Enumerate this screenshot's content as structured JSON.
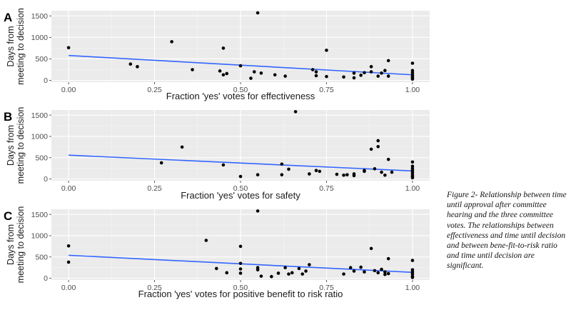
{
  "caption": "Figure 2- Relationship between time until approval after committee hearing and the three committee votes. The relationships between effectiveness and time until decision and between bene-fit-to-risk ratio and time until decision are significant.",
  "colors": {
    "panel_bg": "#ebebeb",
    "grid_major": "#ffffff",
    "grid_minor": "#f5f5f5",
    "points": "#000000",
    "fit_line": "#3366ff",
    "tick_text": "#4d4d4d"
  },
  "chart_data": [
    {
      "type": "scatter",
      "panel": "A",
      "title": "",
      "xlabel": "Fraction 'yes' votes for effectiveness",
      "ylabel": [
        "Days from",
        "meeting to decision"
      ],
      "xlim": [
        -0.05,
        1.05
      ],
      "ylim": [
        -40,
        1620
      ],
      "x_ticks": [
        "0.00",
        "0.25",
        "0.50",
        "0.75",
        "1.00"
      ],
      "x_tick_values": [
        0,
        0.25,
        0.5,
        0.75,
        1
      ],
      "y_ticks": [
        "0",
        "500",
        "1000",
        "1500"
      ],
      "y_tick_values": [
        0,
        500,
        1000,
        1500
      ],
      "grid": true,
      "points": [
        [
          0,
          760
        ],
        [
          0.18,
          380
        ],
        [
          0.2,
          320
        ],
        [
          0.3,
          900
        ],
        [
          0.36,
          250
        ],
        [
          0.44,
          220
        ],
        [
          0.45,
          130
        ],
        [
          0.45,
          750
        ],
        [
          0.46,
          160
        ],
        [
          0.5,
          340
        ],
        [
          0.53,
          50
        ],
        [
          0.54,
          200
        ],
        [
          0.55,
          1570
        ],
        [
          0.56,
          170
        ],
        [
          0.6,
          130
        ],
        [
          0.63,
          100
        ],
        [
          0.71,
          250
        ],
        [
          0.72,
          110
        ],
        [
          0.72,
          200
        ],
        [
          0.75,
          700
        ],
        [
          0.75,
          90
        ],
        [
          0.8,
          80
        ],
        [
          0.83,
          60
        ],
        [
          0.83,
          170
        ],
        [
          0.85,
          120
        ],
        [
          0.86,
          180
        ],
        [
          0.88,
          320
        ],
        [
          0.88,
          200
        ],
        [
          0.9,
          100
        ],
        [
          0.91,
          170
        ],
        [
          0.92,
          230
        ],
        [
          0.93,
          100
        ],
        [
          0.93,
          460
        ],
        [
          1,
          400
        ],
        [
          1,
          230
        ],
        [
          1,
          180
        ],
        [
          1,
          130
        ],
        [
          1,
          90
        ],
        [
          1,
          60
        ],
        [
          1,
          30
        ]
      ],
      "fit_line": [
        [
          0,
          580
        ],
        [
          1,
          130
        ]
      ]
    },
    {
      "type": "scatter",
      "panel": "B",
      "title": "",
      "xlabel": "Fraction 'yes' votes for safety",
      "ylabel": [
        "Days from",
        "meeting to decision"
      ],
      "xlim": [
        -0.05,
        1.05
      ],
      "ylim": [
        -40,
        1620
      ],
      "x_ticks": [
        "0.00",
        "0.25",
        "0.50",
        "0.75",
        "1.00"
      ],
      "x_tick_values": [
        0,
        0.25,
        0.5,
        0.75,
        1
      ],
      "y_ticks": [
        "0",
        "500",
        "1000",
        "1500"
      ],
      "y_tick_values": [
        0,
        500,
        1000,
        1500
      ],
      "grid": true,
      "points": [
        [
          0.27,
          380
        ],
        [
          0.33,
          750
        ],
        [
          0.45,
          330
        ],
        [
          0.5,
          60
        ],
        [
          0.55,
          100
        ],
        [
          0.62,
          350
        ],
        [
          0.62,
          100
        ],
        [
          0.64,
          230
        ],
        [
          0.66,
          1580
        ],
        [
          0.7,
          120
        ],
        [
          0.72,
          200
        ],
        [
          0.73,
          180
        ],
        [
          0.78,
          110
        ],
        [
          0.8,
          90
        ],
        [
          0.81,
          100
        ],
        [
          0.83,
          120
        ],
        [
          0.83,
          80
        ],
        [
          0.86,
          200
        ],
        [
          0.86,
          180
        ],
        [
          0.88,
          700
        ],
        [
          0.89,
          240
        ],
        [
          0.9,
          900
        ],
        [
          0.9,
          760
        ],
        [
          0.91,
          160
        ],
        [
          0.92,
          90
        ],
        [
          0.93,
          460
        ],
        [
          0.94,
          160
        ],
        [
          1,
          400
        ],
        [
          1,
          300
        ],
        [
          1,
          250
        ],
        [
          1,
          200
        ],
        [
          1,
          150
        ],
        [
          1,
          100
        ],
        [
          1,
          60
        ],
        [
          1,
          30
        ]
      ],
      "fit_line": [
        [
          0,
          560
        ],
        [
          1,
          190
        ]
      ]
    },
    {
      "type": "scatter",
      "panel": "C",
      "title": "",
      "xlabel": "Fraction 'yes' votes for positive benefit to risk ratio",
      "ylabel": [
        "Days from",
        "meeting to decision"
      ],
      "xlim": [
        -0.05,
        1.05
      ],
      "ylim": [
        -40,
        1620
      ],
      "x_ticks": [
        "0.00",
        "0.25",
        "0.50",
        "0.75",
        "1.00"
      ],
      "x_tick_values": [
        0,
        0.25,
        0.5,
        0.75,
        1
      ],
      "y_ticks": [
        "0",
        "500",
        "1000",
        "1500"
      ],
      "y_tick_values": [
        0,
        500,
        1000,
        1500
      ],
      "grid": true,
      "points": [
        [
          0,
          760
        ],
        [
          0,
          380
        ],
        [
          0.4,
          890
        ],
        [
          0.43,
          230
        ],
        [
          0.46,
          130
        ],
        [
          0.5,
          750
        ],
        [
          0.5,
          350
        ],
        [
          0.5,
          220
        ],
        [
          0.5,
          120
        ],
        [
          0.55,
          250
        ],
        [
          0.55,
          200
        ],
        [
          0.55,
          1580
        ],
        [
          0.56,
          50
        ],
        [
          0.59,
          40
        ],
        [
          0.61,
          120
        ],
        [
          0.63,
          250
        ],
        [
          0.64,
          100
        ],
        [
          0.65,
          130
        ],
        [
          0.67,
          230
        ],
        [
          0.68,
          100
        ],
        [
          0.69,
          170
        ],
        [
          0.7,
          320
        ],
        [
          0.8,
          100
        ],
        [
          0.82,
          250
        ],
        [
          0.83,
          170
        ],
        [
          0.85,
          260
        ],
        [
          0.86,
          150
        ],
        [
          0.88,
          700
        ],
        [
          0.89,
          180
        ],
        [
          0.9,
          130
        ],
        [
          0.91,
          210
        ],
        [
          0.92,
          150
        ],
        [
          0.92,
          90
        ],
        [
          0.93,
          460
        ],
        [
          0.93,
          110
        ],
        [
          1,
          420
        ],
        [
          1,
          200
        ],
        [
          1,
          150
        ],
        [
          1,
          100
        ],
        [
          1,
          50
        ],
        [
          1,
          20
        ]
      ],
      "fit_line": [
        [
          0,
          540
        ],
        [
          1,
          140
        ]
      ]
    }
  ]
}
